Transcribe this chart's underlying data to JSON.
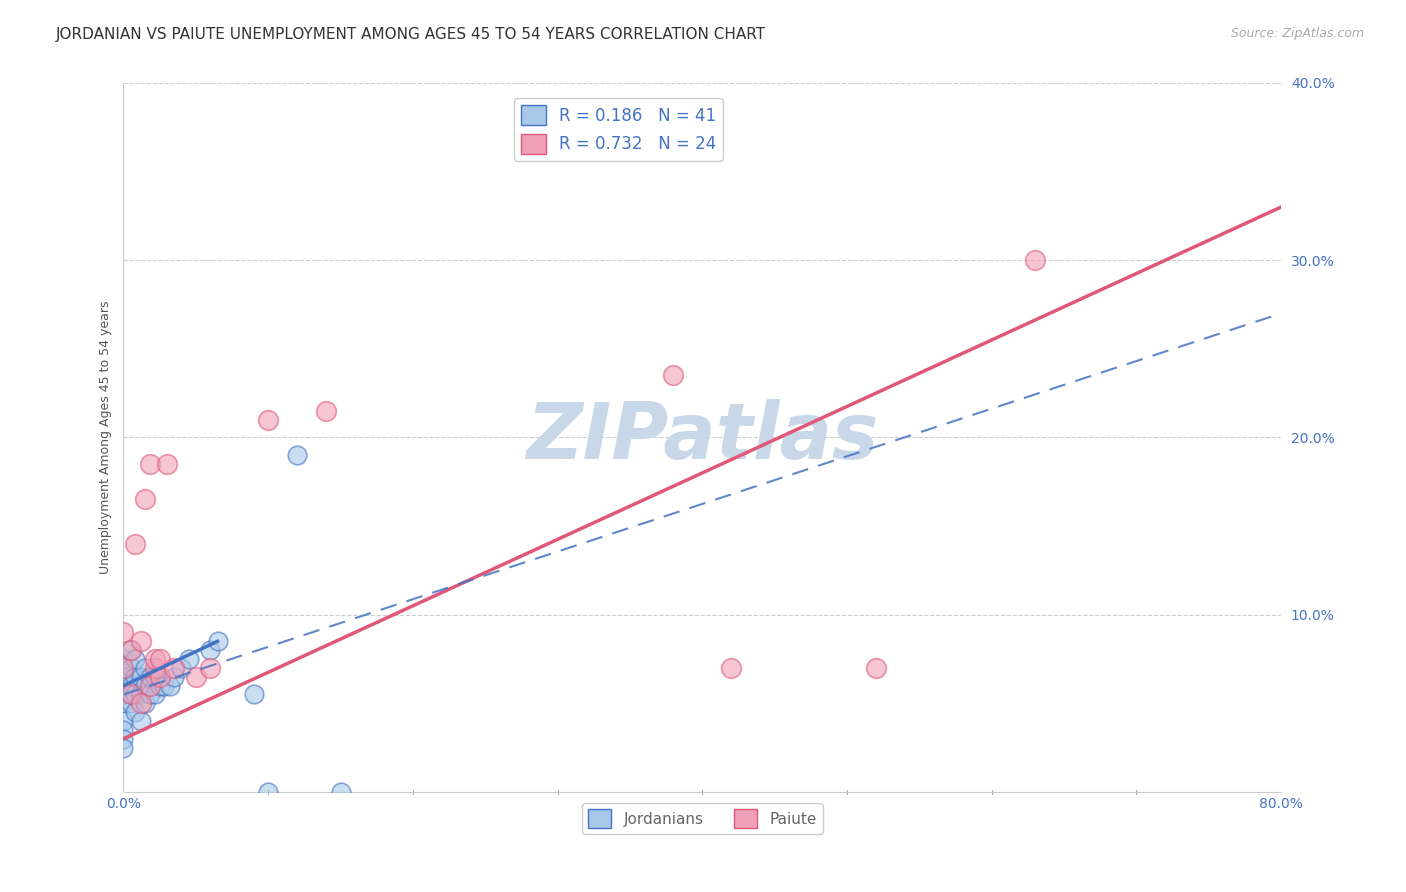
{
  "title": "JORDANIAN VS PAIUTE UNEMPLOYMENT AMONG AGES 45 TO 54 YEARS CORRELATION CHART",
  "source": "Source: ZipAtlas.com",
  "ylabel": "Unemployment Among Ages 45 to 54 years",
  "xlim": [
    0.0,
    0.8
  ],
  "ylim": [
    0.0,
    0.4
  ],
  "xticks": [
    0.0,
    0.8
  ],
  "yticks": [
    0.0,
    0.1,
    0.2,
    0.3,
    0.4
  ],
  "jordanians_R": 0.186,
  "jordanians_N": 41,
  "paiute_R": 0.732,
  "paiute_N": 24,
  "jordanians_color": "#a8c8e8",
  "paiute_color": "#f0a0b8",
  "jordanians_line_color": "#4472c4",
  "paiute_line_color": "#e05878",
  "background_color": "#ffffff",
  "watermark": "ZIPatlas",
  "watermark_color": "#c8d8e8",
  "jordanians_x": [
    0.0,
    0.0,
    0.0,
    0.0,
    0.0,
    0.0,
    0.0,
    0.0,
    0.0,
    0.0,
    0.005,
    0.005,
    0.005,
    0.005,
    0.005,
    0.008,
    0.008,
    0.008,
    0.008,
    0.012,
    0.012,
    0.012,
    0.015,
    0.015,
    0.015,
    0.018,
    0.018,
    0.022,
    0.022,
    0.025,
    0.028,
    0.032,
    0.035,
    0.04,
    0.045,
    0.06,
    0.065,
    0.09,
    0.1,
    0.12,
    0.15
  ],
  "jordanians_y": [
    0.05,
    0.055,
    0.06,
    0.065,
    0.07,
    0.075,
    0.04,
    0.035,
    0.03,
    0.025,
    0.05,
    0.055,
    0.06,
    0.07,
    0.08,
    0.045,
    0.055,
    0.065,
    0.075,
    0.04,
    0.055,
    0.065,
    0.05,
    0.06,
    0.07,
    0.055,
    0.065,
    0.055,
    0.065,
    0.06,
    0.06,
    0.06,
    0.065,
    0.07,
    0.075,
    0.08,
    0.085,
    0.055,
    0.0,
    0.19,
    0.0
  ],
  "paiute_x": [
    0.0,
    0.0,
    0.005,
    0.005,
    0.008,
    0.012,
    0.012,
    0.015,
    0.018,
    0.018,
    0.022,
    0.022,
    0.025,
    0.025,
    0.03,
    0.035,
    0.05,
    0.06,
    0.1,
    0.14,
    0.38,
    0.42,
    0.52,
    0.63
  ],
  "paiute_y": [
    0.07,
    0.09,
    0.055,
    0.08,
    0.14,
    0.05,
    0.085,
    0.165,
    0.185,
    0.06,
    0.07,
    0.075,
    0.065,
    0.075,
    0.185,
    0.07,
    0.065,
    0.07,
    0.21,
    0.215,
    0.235,
    0.07,
    0.07,
    0.3
  ],
  "title_fontsize": 11,
  "axis_fontsize": 9,
  "tick_fontsize": 10
}
